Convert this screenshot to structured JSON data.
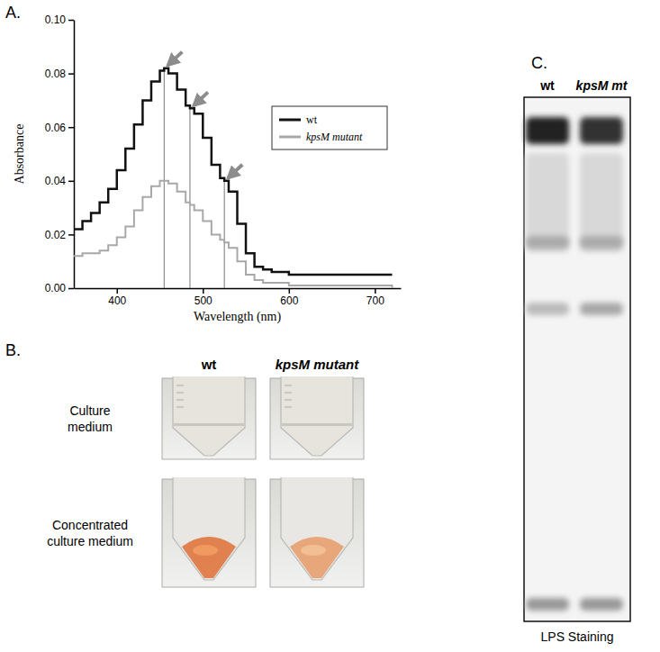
{
  "chart_data": {
    "type": "line",
    "title": "A.",
    "x_label": "Wavelength (nm)",
    "y_label": "Absorbance",
    "x": [
      350,
      360,
      370,
      380,
      390,
      400,
      410,
      420,
      430,
      440,
      450,
      455,
      460,
      470,
      480,
      485,
      490,
      500,
      510,
      520,
      525,
      530,
      540,
      550,
      560,
      570,
      580,
      590,
      600,
      610,
      620,
      630,
      640,
      650,
      660,
      670,
      680,
      690,
      700,
      710,
      720
    ],
    "series": [
      {
        "name": "wt",
        "color": "#111111",
        "line_style": "solid",
        "values": [
          0.022,
          0.025,
          0.028,
          0.032,
          0.037,
          0.044,
          0.052,
          0.061,
          0.07,
          0.077,
          0.081,
          0.082,
          0.08,
          0.074,
          0.068,
          0.067,
          0.065,
          0.056,
          0.046,
          0.041,
          0.04,
          0.036,
          0.024,
          0.013,
          0.008,
          0.007,
          0.006,
          0.006,
          0.005,
          0.005,
          0.005,
          0.005,
          0.005,
          0.005,
          0.005,
          0.005,
          0.005,
          0.005,
          0.005,
          0.005,
          0.005
        ]
      },
      {
        "name": "kpsM mutant",
        "color": "#a8a8a8",
        "line_style": "solid",
        "values": [
          0.012,
          0.013,
          0.013,
          0.014,
          0.016,
          0.019,
          0.023,
          0.029,
          0.034,
          0.038,
          0.04,
          0.04,
          0.039,
          0.036,
          0.032,
          0.031,
          0.029,
          0.025,
          0.02,
          0.018,
          0.017,
          0.015,
          0.01,
          0.005,
          0.003,
          0.002,
          0.002,
          0.002,
          0.001,
          0.001,
          0.001,
          0.001,
          0.001,
          0.001,
          0.001,
          0.001,
          0.001,
          0.001,
          0.001,
          0.001,
          0.0
        ]
      }
    ],
    "xlim": [
      350,
      730
    ],
    "xticks": [
      400,
      500,
      600,
      700
    ],
    "ylim": [
      0,
      0.1
    ],
    "yticks": [
      {
        "value": 0,
        "label": "0.00"
      },
      {
        "value": 0.02,
        "label": "0.02"
      },
      {
        "value": 0.04,
        "label": "0.04"
      },
      {
        "value": 0.06,
        "label": "0.06"
      },
      {
        "value": 0.08,
        "label": "0.08"
      },
      {
        "value": 0.1,
        "label": "0.10"
      }
    ],
    "peak_lines": [
      455,
      485,
      525
    ],
    "legend": "right",
    "grid": false
  },
  "panel_b": {
    "title": "B.",
    "columns": [
      "wt",
      "kpsM mutant"
    ],
    "rows": [
      "Culture medium",
      "Concentrated culture medium"
    ]
  },
  "panel_c": {
    "title": "C.",
    "lanes": [
      "wt",
      "kpsM mt"
    ],
    "caption": "LPS Staining"
  }
}
